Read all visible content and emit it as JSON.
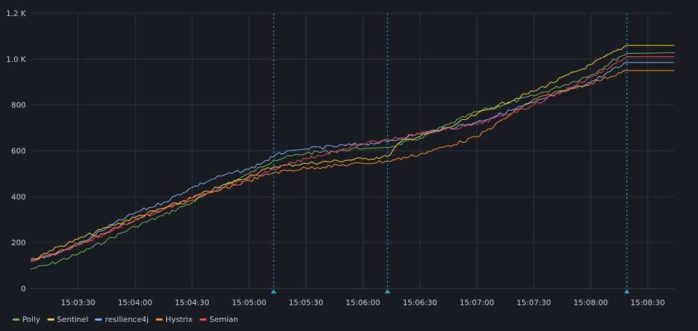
{
  "chart_data": {
    "type": "line",
    "xlabel": "",
    "ylabel": "",
    "x_ticks": [
      "15:03:30",
      "15:04:00",
      "15:04:30",
      "15:05:00",
      "15:05:30",
      "15:06:00",
      "15:06:30",
      "15:07:00",
      "15:07:30",
      "15:08:00",
      "15:08:30"
    ],
    "y_ticks": [
      "0",
      "200",
      "400",
      "600",
      "800",
      "1.0 K",
      "1.2 K"
    ],
    "xlim": [
      "15:03:05",
      "15:08:44"
    ],
    "ylim": [
      0,
      1200
    ],
    "grid": true,
    "legend": "bottom-left",
    "annotations_x": [
      "15:05:13",
      "15:06:13",
      "15:08:19"
    ],
    "series": [
      {
        "name": "Polly",
        "color": "#73bf69",
        "points": [
          [
            "15:03:05",
            85
          ],
          [
            "15:03:15",
            105
          ],
          [
            "15:03:30",
            150
          ],
          [
            "15:03:45",
            210
          ],
          [
            "15:04:00",
            270
          ],
          [
            "15:04:15",
            320
          ],
          [
            "15:04:30",
            375
          ],
          [
            "15:04:45",
            440
          ],
          [
            "15:05:00",
            500
          ],
          [
            "15:05:13",
            560
          ],
          [
            "15:05:30",
            590
          ],
          [
            "15:06:00",
            610
          ],
          [
            "15:06:13",
            615
          ],
          [
            "15:06:30",
            655
          ],
          [
            "15:06:45",
            715
          ],
          [
            "15:07:00",
            770
          ],
          [
            "15:07:30",
            840
          ],
          [
            "15:08:00",
            930
          ],
          [
            "15:08:15",
            1010
          ],
          [
            "15:08:19",
            1025
          ],
          [
            "15:08:44",
            1028
          ]
        ]
      },
      {
        "name": "Sentinel",
        "color": "#fade2a",
        "points": [
          [
            "15:03:05",
            120
          ],
          [
            "15:03:15",
            165
          ],
          [
            "15:03:30",
            215
          ],
          [
            "15:03:45",
            265
          ],
          [
            "15:04:00",
            310
          ],
          [
            "15:04:15",
            350
          ],
          [
            "15:04:30",
            395
          ],
          [
            "15:04:45",
            445
          ],
          [
            "15:05:00",
            490
          ],
          [
            "15:05:13",
            530
          ],
          [
            "15:05:30",
            545
          ],
          [
            "15:06:00",
            565
          ],
          [
            "15:06:13",
            575
          ],
          [
            "15:06:20",
            640
          ],
          [
            "15:06:45",
            700
          ],
          [
            "15:07:00",
            760
          ],
          [
            "15:07:30",
            860
          ],
          [
            "15:08:00",
            975
          ],
          [
            "15:08:19",
            1060
          ],
          [
            "15:08:44",
            1060
          ]
        ]
      },
      {
        "name": "resilience4j",
        "color": "#8ab8ff",
        "points": [
          [
            "15:03:05",
            130
          ],
          [
            "15:03:15",
            140
          ],
          [
            "15:03:30",
            190
          ],
          [
            "15:03:45",
            265
          ],
          [
            "15:04:00",
            330
          ],
          [
            "15:04:15",
            375
          ],
          [
            "15:04:30",
            440
          ],
          [
            "15:04:45",
            490
          ],
          [
            "15:05:00",
            520
          ],
          [
            "15:05:13",
            575
          ],
          [
            "15:05:20",
            600
          ],
          [
            "15:05:30",
            608
          ],
          [
            "15:06:00",
            630
          ],
          [
            "15:06:13",
            640
          ],
          [
            "15:06:30",
            675
          ],
          [
            "15:07:00",
            725
          ],
          [
            "15:07:30",
            810
          ],
          [
            "15:08:00",
            900
          ],
          [
            "15:08:19",
            985
          ],
          [
            "15:08:44",
            985
          ]
        ]
      },
      {
        "name": "Hystrix",
        "color": "#ff9830",
        "points": [
          [
            "15:03:05",
            120
          ],
          [
            "15:03:15",
            150
          ],
          [
            "15:03:30",
            195
          ],
          [
            "15:03:45",
            245
          ],
          [
            "15:04:00",
            300
          ],
          [
            "15:04:15",
            345
          ],
          [
            "15:04:30",
            385
          ],
          [
            "15:04:45",
            430
          ],
          [
            "15:05:00",
            470
          ],
          [
            "15:05:13",
            505
          ],
          [
            "15:05:30",
            525
          ],
          [
            "15:06:00",
            545
          ],
          [
            "15:06:13",
            555
          ],
          [
            "15:06:30",
            585
          ],
          [
            "15:07:00",
            660
          ],
          [
            "15:07:30",
            825
          ],
          [
            "15:08:00",
            895
          ],
          [
            "15:08:19",
            950
          ],
          [
            "15:08:44",
            950
          ]
        ]
      },
      {
        "name": "Semian",
        "color": "#f2495c",
        "points": [
          [
            "15:03:05",
            120
          ],
          [
            "15:03:15",
            145
          ],
          [
            "15:03:30",
            190
          ],
          [
            "15:03:45",
            240
          ],
          [
            "15:04:00",
            300
          ],
          [
            "15:04:15",
            345
          ],
          [
            "15:04:30",
            395
          ],
          [
            "15:04:45",
            440
          ],
          [
            "15:05:00",
            480
          ],
          [
            "15:05:13",
            520
          ],
          [
            "15:05:30",
            565
          ],
          [
            "15:06:00",
            630
          ],
          [
            "15:06:13",
            650
          ],
          [
            "15:06:30",
            675
          ],
          [
            "15:07:00",
            715
          ],
          [
            "15:07:30",
            800
          ],
          [
            "15:08:00",
            920
          ],
          [
            "15:08:19",
            1010
          ],
          [
            "15:08:44",
            1010
          ]
        ]
      }
    ]
  }
}
